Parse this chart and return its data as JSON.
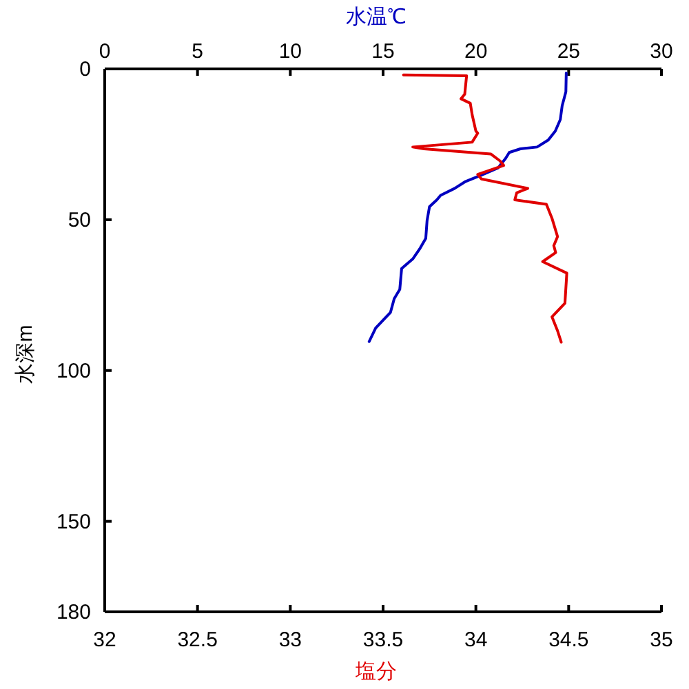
{
  "chart_data": {
    "type": "line",
    "xlabel": "塩分",
    "x2label": "水温℃",
    "ylabel": "水深m",
    "xlim": [
      32,
      35
    ],
    "xticks": [
      32,
      32.5,
      33,
      33.5,
      34,
      34.5,
      35
    ],
    "x2lim": [
      0,
      30
    ],
    "x2ticks": [
      0,
      5,
      10,
      15,
      20,
      25,
      30
    ],
    "ylim": [
      180,
      0
    ],
    "yticks": [
      0,
      50,
      100,
      150,
      180
    ],
    "series": [
      {
        "color": "#0000c0",
        "axis": "x2",
        "x": [
          24.87,
          24.85,
          24.65,
          24.55,
          24.28,
          23.9,
          23.3,
          22.4,
          21.8,
          21.6,
          21.2,
          20.3,
          19.45,
          18.86,
          18.1,
          17.9,
          17.5,
          17.37,
          17.3,
          17.0,
          16.6,
          16.0,
          15.9,
          15.6,
          15.4,
          14.6,
          14.25
        ],
        "values": [
          1.4,
          7.6,
          12.2,
          16.8,
          20.6,
          23.6,
          25.9,
          26.5,
          27.7,
          29.7,
          32.8,
          35.2,
          37.3,
          39.6,
          41.9,
          43.4,
          45.7,
          50.3,
          56.2,
          59.4,
          63,
          66.2,
          73.1,
          76.2,
          80.7,
          85.9,
          90.4
        ]
      },
      {
        "color": "#e00000",
        "x": [
          33.61,
          33.95,
          33.94,
          33.92,
          33.97,
          33.98,
          34.0,
          34.01,
          33.98,
          33.66,
          33.72,
          34.08,
          34.13,
          34.15,
          34.01,
          34.03,
          34.28,
          34.22,
          34.21,
          34.38,
          34.41,
          34.44,
          34.42,
          34.43,
          34.36,
          34.49,
          34.48,
          34.41,
          34.44,
          34.46
        ],
        "values": [
          2.0,
          2.3,
          8.4,
          9.9,
          11.4,
          15.2,
          20.6,
          21.3,
          24.3,
          25.9,
          26.5,
          28.2,
          30.5,
          32.0,
          35.0,
          36.5,
          39.6,
          41.1,
          43.4,
          44.9,
          49.5,
          55.6,
          58.6,
          60.9,
          63.9,
          67.7,
          77.7,
          82.2,
          86.8,
          90.6
        ]
      }
    ]
  }
}
